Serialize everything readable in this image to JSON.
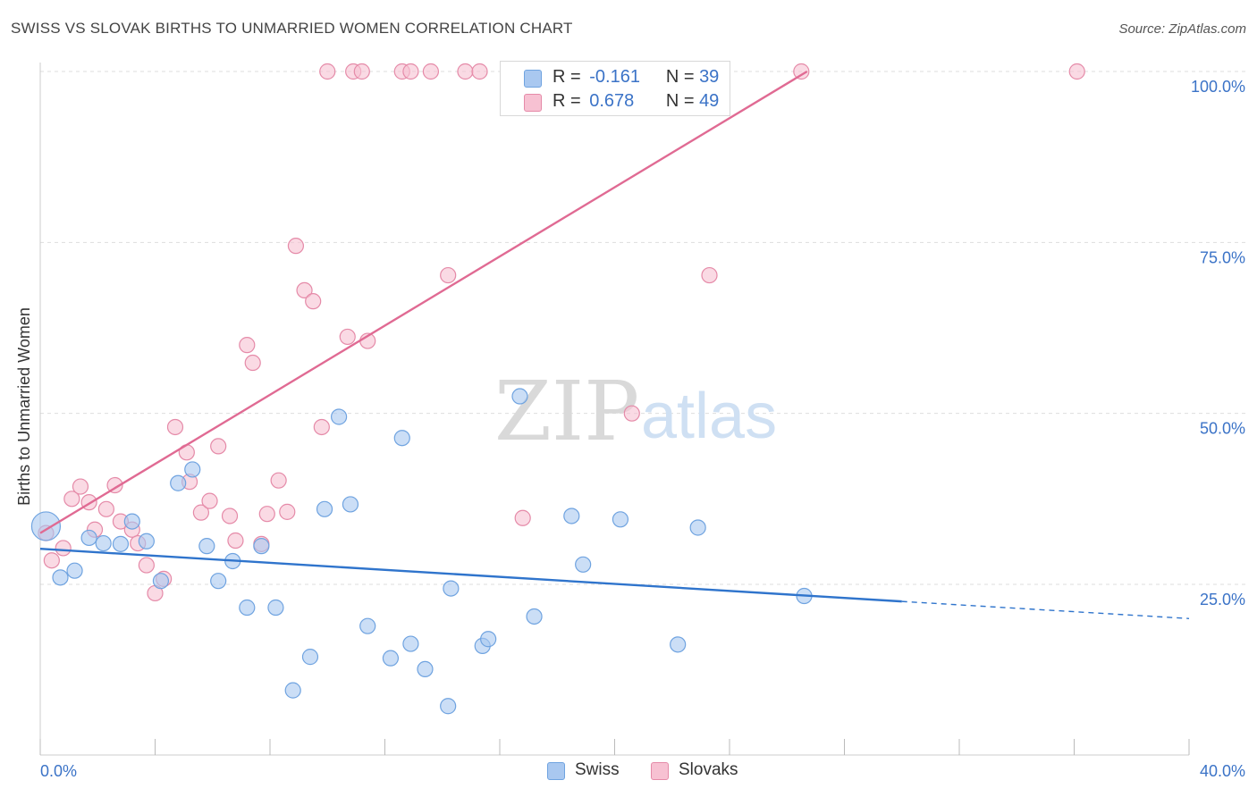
{
  "title": "SWISS VS SLOVAK BIRTHS TO UNMARRIED WOMEN CORRELATION CHART",
  "source": "Source: ZipAtlas.com",
  "watermark": {
    "zip": "ZIP",
    "atlas": "atlas"
  },
  "colors": {
    "swiss": "#6fa3e0",
    "swiss_fill": "#a9c8f0",
    "swiss_line": "#2f74cc",
    "slovak": "#e58aa8",
    "slovak_fill": "#f7c1d2",
    "slovak_line": "#e06a93",
    "tick_label": "#3b73c7",
    "grid": "#dddddd"
  },
  "legend": {
    "r_label": "R =",
    "n_label": "N =",
    "swiss": {
      "r": "-0.161",
      "n": "39"
    },
    "slovak": {
      "r": "0.678",
      "n": "49"
    }
  },
  "bottom_legend": {
    "swiss": "Swiss",
    "slovak": "Slovaks"
  },
  "chart_data": {
    "type": "scatter",
    "ylabel": "Births to Unmarried Women",
    "xlabel": "",
    "xlim": [
      0,
      40
    ],
    "ylim": [
      0,
      105
    ],
    "x_tick_labels": [
      "0.0%",
      "40.0%"
    ],
    "y_ticks": [
      25,
      50,
      75,
      100
    ],
    "y_tick_labels": [
      "25.0%",
      "50.0%",
      "75.0%",
      "100.0%"
    ],
    "grid": true,
    "legend_position": "top-center",
    "series": [
      {
        "name": "Swiss",
        "points": [
          [
            0.2,
            33.5
          ],
          [
            0.7,
            26.0
          ],
          [
            1.2,
            27.0
          ],
          [
            1.7,
            31.8
          ],
          [
            2.2,
            31.0
          ],
          [
            2.8,
            30.9
          ],
          [
            3.2,
            34.2
          ],
          [
            3.7,
            31.3
          ],
          [
            4.2,
            25.5
          ],
          [
            4.8,
            39.8
          ],
          [
            5.3,
            41.8
          ],
          [
            5.8,
            30.6
          ],
          [
            6.2,
            25.5
          ],
          [
            6.7,
            28.4
          ],
          [
            7.2,
            21.6
          ],
          [
            7.7,
            30.6
          ],
          [
            8.2,
            21.6
          ],
          [
            8.8,
            9.5
          ],
          [
            9.4,
            14.4
          ],
          [
            9.9,
            36.0
          ],
          [
            10.4,
            49.5
          ],
          [
            10.8,
            36.7
          ],
          [
            11.4,
            18.9
          ],
          [
            12.2,
            14.2
          ],
          [
            12.6,
            46.4
          ],
          [
            12.9,
            16.3
          ],
          [
            13.4,
            12.6
          ],
          [
            14.2,
            7.2
          ],
          [
            14.3,
            24.4
          ],
          [
            15.4,
            16.0
          ],
          [
            15.6,
            17.0
          ],
          [
            16.7,
            52.5
          ],
          [
            17.2,
            20.3
          ],
          [
            18.5,
            35.0
          ],
          [
            18.9,
            27.9
          ],
          [
            20.2,
            34.5
          ],
          [
            22.2,
            16.2
          ],
          [
            22.9,
            33.3
          ],
          [
            26.6,
            23.3
          ]
        ]
      },
      {
        "name": "Slovaks",
        "points": [
          [
            0.2,
            32.5
          ],
          [
            0.4,
            28.5
          ],
          [
            0.8,
            30.3
          ],
          [
            1.1,
            37.5
          ],
          [
            1.4,
            39.3
          ],
          [
            1.7,
            37.0
          ],
          [
            1.9,
            33.0
          ],
          [
            2.3,
            36.0
          ],
          [
            2.6,
            39.5
          ],
          [
            2.8,
            34.2
          ],
          [
            3.2,
            33.0
          ],
          [
            3.4,
            31.0
          ],
          [
            3.7,
            27.8
          ],
          [
            4.0,
            23.7
          ],
          [
            4.3,
            25.8
          ],
          [
            4.7,
            48.0
          ],
          [
            5.1,
            44.3
          ],
          [
            5.2,
            40.0
          ],
          [
            5.6,
            35.5
          ],
          [
            5.9,
            37.2
          ],
          [
            6.2,
            45.2
          ],
          [
            6.6,
            35.0
          ],
          [
            6.8,
            31.4
          ],
          [
            7.2,
            60.0
          ],
          [
            7.4,
            57.4
          ],
          [
            7.7,
            30.9
          ],
          [
            7.9,
            35.3
          ],
          [
            8.3,
            40.2
          ],
          [
            8.6,
            35.6
          ],
          [
            8.9,
            74.5
          ],
          [
            9.2,
            68.0
          ],
          [
            9.5,
            66.4
          ],
          [
            9.8,
            48.0
          ],
          [
            10.0,
            100.0
          ],
          [
            10.7,
            61.2
          ],
          [
            10.9,
            100.0
          ],
          [
            11.2,
            100.0
          ],
          [
            11.4,
            60.6
          ],
          [
            12.6,
            100.0
          ],
          [
            12.9,
            100.0
          ],
          [
            13.6,
            100.0
          ],
          [
            14.2,
            70.2
          ],
          [
            14.8,
            100.0
          ],
          [
            15.3,
            100.0
          ],
          [
            16.8,
            34.7
          ],
          [
            20.6,
            50.0
          ],
          [
            23.3,
            70.2
          ],
          [
            26.5,
            100.0
          ],
          [
            36.1,
            100.0
          ]
        ]
      }
    ],
    "trend_lines": [
      {
        "name": "Swiss",
        "x": [
          0,
          30
        ],
        "y": [
          30.2,
          22.5
        ],
        "dashed_to_x": 40,
        "dashed_to_y": 20.0
      },
      {
        "name": "Slovaks",
        "x": [
          0,
          26.7
        ],
        "y": [
          32.5,
          100.0
        ]
      }
    ]
  }
}
